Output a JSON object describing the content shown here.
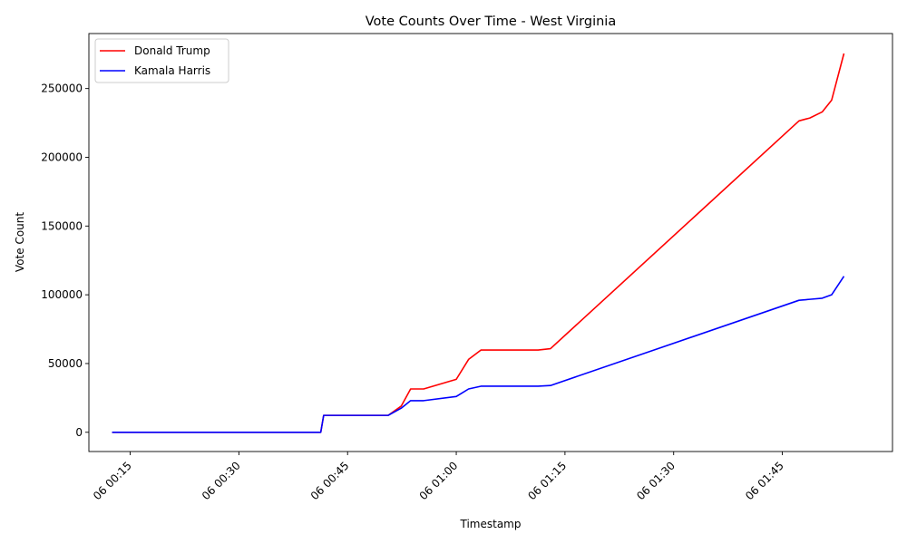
{
  "chart_data": {
    "type": "line",
    "title": "Vote Counts Over Time - West Virginia",
    "xlabel": "Timestamp",
    "ylabel": "Vote Count",
    "x_tick_labels": [
      "06 00:15",
      "06 00:30",
      "06 00:45",
      "06 01:00",
      "06 01:15",
      "06 01:30",
      "06 01:45"
    ],
    "x_tick_minutes": [
      15,
      30,
      45,
      60,
      75,
      90,
      105
    ],
    "y_ticks": [
      0,
      50000,
      100000,
      150000,
      200000,
      250000
    ],
    "y_tick_labels": [
      "0",
      "50000",
      "100000",
      "150000",
      "200000",
      "250000"
    ],
    "ylim": [
      -14000,
      290000
    ],
    "legend_position": "upper-left",
    "grid": false,
    "series": [
      {
        "name": "Donald Trump",
        "color": "#ff0000",
        "x": [
          "00:12.5",
          "00:41.3",
          "00:41.7",
          "00:50.6",
          "00:52.4",
          "00:53.7",
          "00:55.5",
          "01:00.0",
          "01:01.7",
          "01:03.4",
          "01:11.3",
          "01:13.0",
          "01:47.3",
          "01:48.8",
          "01:50.5",
          "01:51.8",
          "01:53.5"
        ],
        "y": [
          0,
          0,
          12300,
          12300,
          19000,
          31500,
          31500,
          38500,
          53000,
          59800,
          59800,
          60800,
          226500,
          228600,
          233000,
          241500,
          275500
        ]
      },
      {
        "name": "Kamala Harris",
        "color": "#0000ff",
        "x": [
          "00:12.5",
          "00:41.3",
          "00:41.7",
          "00:50.6",
          "00:52.4",
          "00:53.7",
          "00:55.5",
          "01:00.0",
          "01:01.7",
          "01:03.4",
          "01:11.3",
          "01:13.0",
          "01:47.3",
          "01:48.8",
          "01:50.5",
          "01:51.8",
          "01:53.5"
        ],
        "y": [
          0,
          0,
          12300,
          12300,
          17500,
          23000,
          23000,
          26000,
          31500,
          33500,
          33500,
          34000,
          96000,
          96700,
          97500,
          100000,
          113500
        ]
      }
    ]
  }
}
